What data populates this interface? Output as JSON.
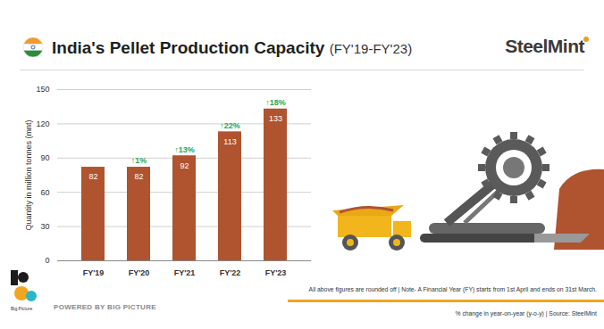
{
  "chart_data": {
    "type": "bar",
    "title": "India's Pellet Production Capacity",
    "subtitle": "(FY'19-FY'23)",
    "y_label": "Quantity in million tonnes (mnt)",
    "categories": [
      "FY'19",
      "FY'20",
      "FY'21",
      "FY'22",
      "FY'23"
    ],
    "values": [
      82,
      82,
      92,
      113,
      133
    ],
    "color": "#b0532f",
    "ylim": [
      0,
      150
    ],
    "yticks": [
      0,
      30,
      60,
      90,
      120,
      150
    ],
    "grid": true,
    "data_labels": true,
    "yoy_labels": [
      null,
      "↑1%",
      "↑13%",
      "↑22%",
      "↑18%"
    ],
    "brand": "SteelMint",
    "note": "All above figures are rounded off | Note- A Financial Year (FY) starts from 1st April and ends on 31st March.",
    "footer": "POWERED BY BIG PICTURE",
    "source": "% change in year-on-year (y-o-y) | Source: SteelMint",
    "logo_text": "Big Picture"
  }
}
